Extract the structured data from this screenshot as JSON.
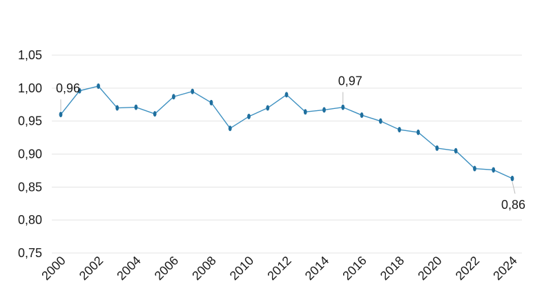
{
  "chart_data": {
    "type": "line",
    "title": "",
    "xlabel": "",
    "ylabel": "",
    "x": [
      2000,
      2001,
      2002,
      2003,
      2004,
      2005,
      2006,
      2007,
      2008,
      2009,
      2010,
      2011,
      2012,
      2013,
      2014,
      2015,
      2016,
      2017,
      2018,
      2019,
      2020,
      2021,
      2022,
      2023,
      2024
    ],
    "series": [
      {
        "values": [
          0.96,
          0.996,
          1.003,
          0.97,
          0.971,
          0.961,
          0.987,
          0.995,
          0.978,
          0.939,
          0.957,
          0.97,
          0.99,
          0.964,
          0.967,
          0.971,
          0.959,
          0.95,
          0.937,
          0.933,
          0.909,
          0.905,
          0.878,
          0.876,
          0.863
        ]
      }
    ],
    "xlim": [
      2000,
      2024
    ],
    "ylim": [
      0.75,
      1.05
    ],
    "x_ticks": [
      "2000",
      "2002",
      "2004",
      "2006",
      "2008",
      "2010",
      "2012",
      "2014",
      "2016",
      "2018",
      "2020",
      "2022",
      "2024"
    ],
    "y_ticks": [
      "0,75",
      "0,80",
      "0,85",
      "0,90",
      "0,95",
      "1,00",
      "1,05"
    ],
    "y_tick_values": [
      0.75,
      0.8,
      0.85,
      0.9,
      0.95,
      1.0,
      1.05
    ],
    "annotations": [
      {
        "x": 2000,
        "y": 0.96,
        "text": "0,96",
        "placement": "above"
      },
      {
        "x": 2015,
        "y": 0.971,
        "text": "0,97",
        "placement": "above"
      },
      {
        "x": 2024,
        "y": 0.863,
        "text": "0,86",
        "placement": "below"
      }
    ],
    "grid": true,
    "colors": {
      "line": "#3b8fc0",
      "marker": "#1f6f9e",
      "grid": "#e3e3e3",
      "text": "#1a1a1a"
    }
  }
}
